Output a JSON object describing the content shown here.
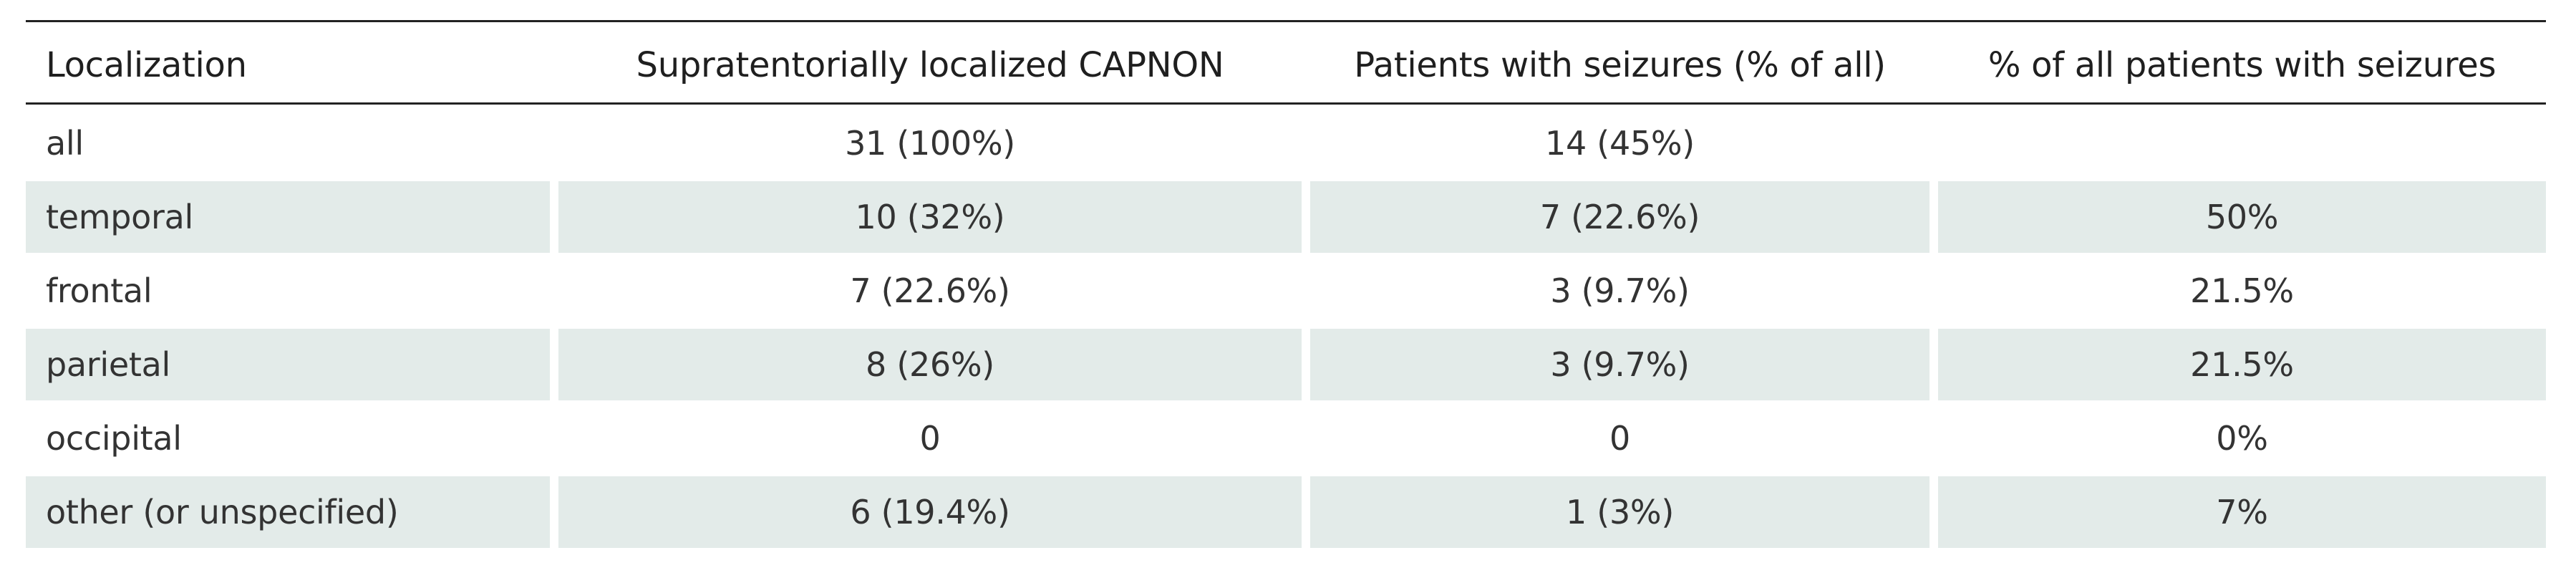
{
  "table": {
    "headers": [
      "Localization",
      "Supratentorially localized CAPNON",
      "Patients with seizures (% of all)",
      "% of all patients with seizures"
    ],
    "rows": [
      {
        "localization": "all",
        "capnon": "31 (100%)",
        "seizures": "14 (45%)",
        "pct_seizures": ""
      },
      {
        "localization": "temporal",
        "capnon": "10 (32%)",
        "seizures": "7 (22.6%)",
        "pct_seizures": "50%"
      },
      {
        "localization": "frontal",
        "capnon": "7 (22.6%)",
        "seizures": "3 (9.7%)",
        "pct_seizures": "21.5%"
      },
      {
        "localization": "parietal",
        "capnon": "8 (26%)",
        "seizures": "3 (9.7%)",
        "pct_seizures": "21.5%"
      },
      {
        "localization": "occipital",
        "capnon": "0",
        "seizures": "0",
        "pct_seizures": "0%"
      },
      {
        "localization": "other (or unspecified)",
        "capnon": "6 (19.4%)",
        "seizures": "1 (3%)",
        "pct_seizures": "7%"
      }
    ],
    "colors": {
      "shaded_row": "#e3ebe9",
      "rule": "#222222",
      "text": "#333333"
    }
  }
}
